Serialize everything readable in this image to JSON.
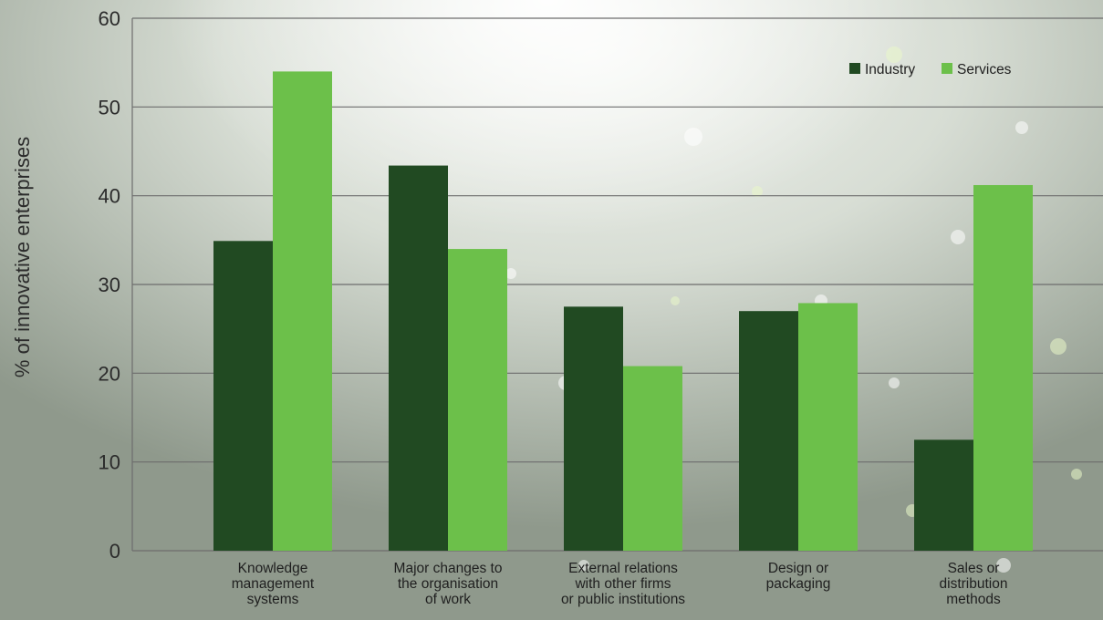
{
  "chart_data": {
    "type": "bar",
    "title": "",
    "xlabel": "",
    "ylabel": "% of innovative enterprises",
    "ylim": [
      0,
      60
    ],
    "yticks": [
      0,
      10,
      20,
      30,
      40,
      50,
      60
    ],
    "grid": true,
    "legend_position": "top-right",
    "categories": [
      [
        "Knowledge",
        "management",
        "systems"
      ],
      [
        "Major changes to",
        "the organisation",
        "of work"
      ],
      [
        "External relations",
        "with other firms",
        "or public institutions"
      ],
      [
        "Design or",
        "packaging"
      ],
      [
        "Sales or",
        "distribution",
        "methods"
      ]
    ],
    "series": [
      {
        "name": "Industry",
        "color": "#214a22",
        "values": [
          34.9,
          43.4,
          27.5,
          27.0,
          12.5
        ]
      },
      {
        "name": "Services",
        "color": "#6cc04a",
        "values": [
          54.0,
          34.0,
          20.8,
          27.9,
          41.2
        ]
      }
    ]
  }
}
